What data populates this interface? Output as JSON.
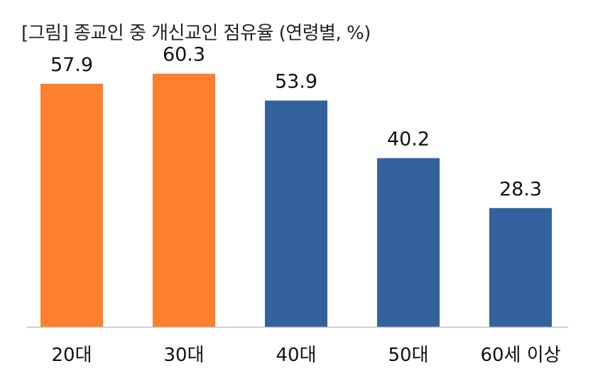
{
  "chart_data": {
    "type": "bar",
    "title": "[그림] 종교인 중 개신교인 점유율 (연령별, %)",
    "categories": [
      "20대",
      "30대",
      "40대",
      "50대",
      "60세 이상"
    ],
    "values": [
      57.9,
      60.3,
      53.9,
      40.2,
      28.3
    ],
    "value_labels": [
      "57.9",
      "60.3",
      "53.9",
      "40.2",
      "28.3"
    ],
    "xlabel": "",
    "ylabel": "",
    "ylim": [
      0,
      66
    ],
    "grid": false,
    "legend": "none",
    "bar_colors": [
      "#FE7F2D",
      "#FE7F2D",
      "#33629E",
      "#33629E",
      "#33629E"
    ],
    "axis_color": "#BFBFBF",
    "text_color": "#111111"
  }
}
